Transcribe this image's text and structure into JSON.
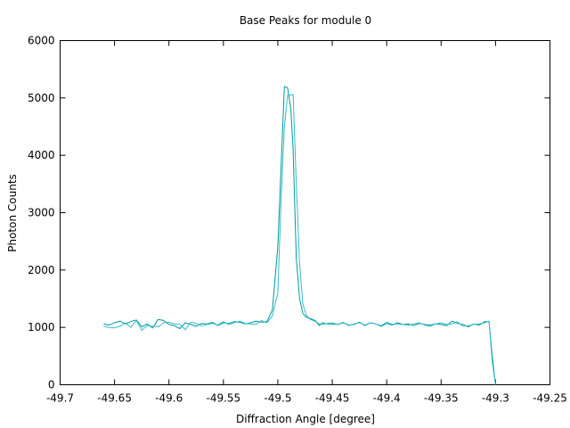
{
  "chart_data": {
    "type": "line",
    "title": "Base Peaks for module 0",
    "xlabel": "Diffraction Angle [degree]",
    "ylabel": "Photon Counts",
    "xlim": [
      -49.7,
      -49.25
    ],
    "ylim": [
      0,
      6000
    ],
    "xticks": [
      -49.7,
      -49.65,
      -49.6,
      -49.55,
      -49.5,
      -49.45,
      -49.4,
      -49.35,
      -49.3,
      -49.25
    ],
    "xtick_labels": [
      "-49.7",
      "-49.65",
      "-49.6",
      "-49.55",
      "-49.5",
      "-49.45",
      "-49.4",
      "-49.35",
      "-49.3",
      "-49.25"
    ],
    "yticks": [
      0,
      1000,
      2000,
      3000,
      4000,
      5000,
      6000
    ],
    "ytick_labels": [
      "0",
      "1000",
      "2000",
      "3000",
      "4000",
      "5000",
      "6000"
    ],
    "grid": false,
    "series": [
      {
        "color": "#009999",
        "x": [
          -49.66,
          -49.655,
          -49.65,
          -49.645,
          -49.64,
          -49.635,
          -49.63,
          -49.625,
          -49.62,
          -49.615,
          -49.61,
          -49.605,
          -49.6,
          -49.595,
          -49.59,
          -49.585,
          -49.58,
          -49.575,
          -49.57,
          -49.565,
          -49.56,
          -49.555,
          -49.55,
          -49.545,
          -49.54,
          -49.535,
          -49.53,
          -49.525,
          -49.52,
          -49.515,
          -49.51,
          -49.505,
          -49.5,
          -49.497,
          -49.494,
          -49.491,
          -49.488,
          -49.486,
          -49.483,
          -49.48,
          -49.477,
          -49.474,
          -49.471,
          -49.468,
          -49.465,
          -49.462,
          -49.459,
          -49.455,
          -49.45,
          -49.445,
          -49.44,
          -49.435,
          -49.43,
          -49.425,
          -49.42,
          -49.415,
          -49.41,
          -49.405,
          -49.4,
          -49.395,
          -49.39,
          -49.385,
          -49.38,
          -49.375,
          -49.37,
          -49.365,
          -49.36,
          -49.355,
          -49.35,
          -49.345,
          -49.34,
          -49.335,
          -49.33,
          -49.325,
          -49.32,
          -49.315,
          -49.31,
          -49.306,
          -49.303,
          -49.3
        ],
        "y": [
          1060,
          1040,
          1080,
          1110,
          1060,
          1100,
          1130,
          1010,
          1060,
          990,
          1140,
          1120,
          1050,
          1030,
          980,
          1080,
          1050,
          1020,
          1070,
          1060,
          1090,
          1030,
          1080,
          1070,
          1100,
          1090,
          1060,
          1080,
          1110,
          1090,
          1100,
          1300,
          2400,
          3800,
          5200,
          5180,
          4800,
          4100,
          2200,
          1500,
          1240,
          1180,
          1160,
          1140,
          1110,
          1030,
          1080,
          1060,
          1060,
          1050,
          1080,
          1040,
          1050,
          1090,
          1030,
          1080,
          1060,
          1020,
          1070,
          1040,
          1080,
          1050,
          1060,
          1030,
          1070,
          1050,
          1040,
          1060,
          1050,
          1030,
          1110,
          1070,
          1050,
          1010,
          1060,
          1040,
          1100,
          1100,
          500,
          0
        ]
      },
      {
        "color": "#33bbcc",
        "x": [
          -49.66,
          -49.655,
          -49.65,
          -49.645,
          -49.64,
          -49.635,
          -49.63,
          -49.625,
          -49.62,
          -49.615,
          -49.61,
          -49.605,
          -49.6,
          -49.595,
          -49.59,
          -49.585,
          -49.58,
          -49.575,
          -49.57,
          -49.565,
          -49.56,
          -49.555,
          -49.55,
          -49.545,
          -49.54,
          -49.535,
          -49.53,
          -49.525,
          -49.52,
          -49.515,
          -49.51,
          -49.505,
          -49.5,
          -49.497,
          -49.494,
          -49.491,
          -49.488,
          -49.486,
          -49.483,
          -49.48,
          -49.477,
          -49.474,
          -49.471,
          -49.468,
          -49.465,
          -49.462,
          -49.459,
          -49.455,
          -49.45,
          -49.445,
          -49.44,
          -49.435,
          -49.43,
          -49.425,
          -49.42,
          -49.415,
          -49.41,
          -49.405,
          -49.4,
          -49.395,
          -49.39,
          -49.385,
          -49.38,
          -49.375,
          -49.37,
          -49.365,
          -49.36,
          -49.355,
          -49.35,
          -49.345,
          -49.34,
          -49.335,
          -49.33,
          -49.325,
          -49.32,
          -49.315,
          -49.31,
          -49.306,
          -49.303,
          -49.3
        ],
        "y": [
          1020,
          1000,
          990,
          1020,
          1080,
          1000,
          1120,
          950,
          1030,
          1020,
          1010,
          1080,
          1090,
          1060,
          1050,
          960,
          1090,
          1070,
          1030,
          1050,
          1070,
          1040,
          1100,
          1050,
          1080,
          1110,
          1070,
          1060,
          1050,
          1120,
          1080,
          1200,
          1600,
          3200,
          4500,
          5050,
          5050,
          5060,
          3500,
          2100,
          1400,
          1220,
          1150,
          1120,
          1100,
          1060,
          1050,
          1070,
          1080,
          1050,
          1090,
          1030,
          1060,
          1080,
          1040,
          1080,
          1060,
          1030,
          1090,
          1050,
          1060,
          1050,
          1040,
          1060,
          1080,
          1040,
          1020,
          1060,
          1080,
          1050,
          1060,
          1100,
          1020,
          1030,
          1050,
          1060,
          1080,
          1110,
          400,
          0
        ]
      }
    ]
  }
}
